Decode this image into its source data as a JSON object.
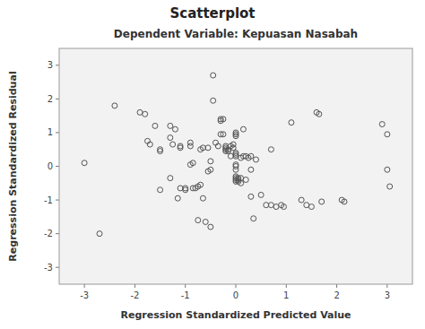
{
  "chart_data": {
    "type": "scatter",
    "title": "Scatterplot",
    "subtitle": "Dependent Variable: Kepuasan Nasabah",
    "x_label": "Regression Standardized Predicted Value",
    "y_label": "Regression Standardized Residual",
    "xlim": [
      -3.5,
      3.5
    ],
    "ylim": [
      -3.5,
      3.5
    ],
    "xticks": [
      -3,
      -2,
      -1,
      0,
      1,
      2,
      3
    ],
    "yticks": [
      -3,
      -2,
      -1,
      0,
      1,
      2,
      3
    ],
    "color": "#555555",
    "grid": false,
    "x": [
      -2.7,
      -2.4,
      -1.9,
      -1.8,
      -1.75,
      -1.7,
      -1.6,
      -1.5,
      -1.5,
      -1.5,
      -1.3,
      -1.3,
      -1.3,
      -1.25,
      -1.2,
      -1.15,
      -1.1,
      -1.1,
      -1.1,
      -1.0,
      -1.0,
      -0.9,
      -0.9,
      -0.9,
      -0.85,
      -0.85,
      -0.8,
      -0.75,
      -0.75,
      -0.7,
      -0.7,
      -0.65,
      -0.65,
      -0.6,
      -0.55,
      -0.55,
      -0.5,
      -0.5,
      -0.5,
      -0.45,
      -0.45,
      -0.4,
      -0.35,
      -0.3,
      -0.3,
      -0.3,
      -0.25,
      -0.25,
      -0.2,
      -0.2,
      -0.2,
      -0.2,
      -0.15,
      -0.15,
      -0.1,
      -0.1,
      -0.05,
      -0.05,
      0.0,
      0.0,
      0.0,
      0.0,
      0.0,
      0.0,
      0.0,
      0.0,
      0.0,
      0.0,
      0.0,
      0.0,
      0.0,
      0.05,
      0.05,
      0.05,
      0.1,
      0.1,
      0.1,
      0.15,
      0.15,
      0.2,
      0.2,
      0.25,
      0.3,
      0.3,
      0.3,
      0.35,
      0.4,
      0.5,
      0.6,
      0.7,
      0.7,
      0.8,
      0.9,
      0.95,
      1.1,
      1.3,
      1.4,
      1.5,
      1.6,
      1.65,
      1.7,
      2.1,
      2.15,
      2.9,
      3.0,
      3.0,
      3.05,
      -3.0
    ],
    "values": [
      -2.0,
      1.8,
      1.6,
      1.55,
      0.75,
      0.65,
      1.2,
      0.5,
      0.45,
      -0.7,
      1.2,
      0.85,
      -0.35,
      0.65,
      1.1,
      -0.95,
      0.6,
      0.55,
      -0.65,
      -0.65,
      -0.7,
      0.7,
      0.6,
      0.05,
      0.1,
      -0.65,
      -0.65,
      -0.6,
      -1.6,
      0.5,
      -0.55,
      0.55,
      -0.95,
      -1.65,
      0.55,
      -0.15,
      0.15,
      -0.1,
      -1.8,
      2.7,
      1.95,
      0.7,
      0.6,
      1.4,
      1.35,
      0.95,
      1.4,
      0.95,
      0.6,
      0.55,
      0.5,
      0.45,
      0.5,
      0.45,
      0.6,
      0.3,
      0.65,
      0.55,
      1.0,
      0.95,
      0.9,
      0.4,
      0.35,
      0.3,
      0.05,
      0.0,
      -0.1,
      -0.3,
      -0.35,
      -0.4,
      -0.45,
      -0.35,
      -0.4,
      -0.45,
      0.25,
      -0.35,
      -0.5,
      1.1,
      0.3,
      0.3,
      -0.4,
      0.25,
      0.3,
      -0.1,
      -0.9,
      -1.55,
      0.2,
      -0.85,
      -1.15,
      0.5,
      -1.15,
      -1.2,
      -1.15,
      -1.2,
      1.3,
      -1.0,
      -1.15,
      -1.2,
      1.6,
      1.55,
      -1.05,
      -1.0,
      -1.05,
      1.25,
      0.95,
      -0.1,
      -0.6,
      0.1
    ]
  }
}
